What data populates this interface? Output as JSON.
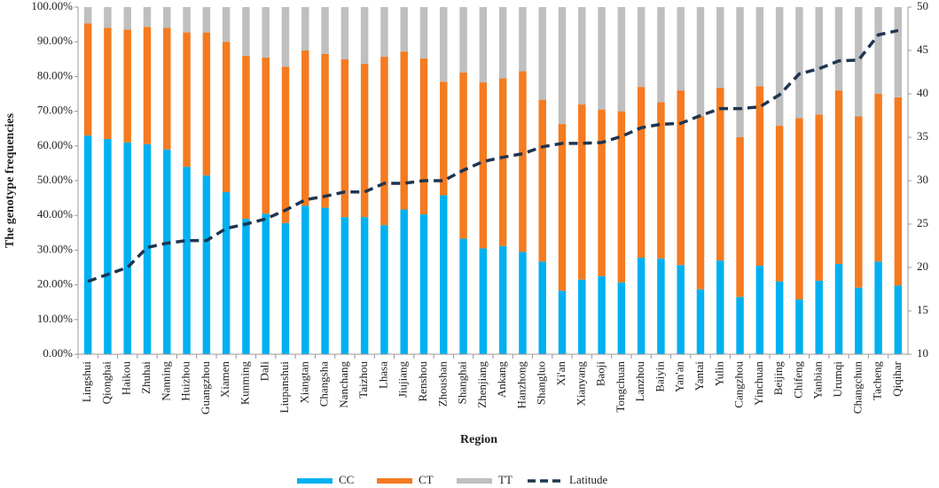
{
  "chart_data": {
    "type": "bar",
    "stacked": true,
    "x_label": "Region",
    "y_label": "The genotype frequencies",
    "categories": [
      "Lingshui",
      "Qionghai",
      "Haikou",
      "Zhuhai",
      "Nanning",
      "Huizhou",
      "Guangzhou",
      "Xiamen",
      "Kunming",
      "Dali",
      "Liupanshui",
      "Xiangtan",
      "Changsha",
      "Nanchang",
      "Taizhou",
      "Lhasa",
      "Jiujiang",
      "Renshou",
      "Zhoushan",
      "Shanghai",
      "Zhenjiang",
      "Ankang",
      "Hanzhong",
      "Shangluo",
      "Xi'an",
      "Xianyang",
      "Baoji",
      "Tongchuan",
      "Lanzhou",
      "Baiyin",
      "Yan'an",
      "Yantai",
      "Yulin",
      "Cangzhou",
      "Yinchuan",
      "Beijing",
      "Chifeng",
      "Yanbian",
      "Urumqi",
      "Changchun",
      "Tacheng",
      "Qiqihar"
    ],
    "series": [
      {
        "name": "CC",
        "color": "#00b0f0",
        "values": [
          63,
          62,
          61,
          60.5,
          59,
          54,
          51.5,
          46.7,
          39,
          40.5,
          37.8,
          42.8,
          42.2,
          39.5,
          39.5,
          37.2,
          41.7,
          40.3,
          45.8,
          33.3,
          30.5,
          31.2,
          29.5,
          26.7,
          18.3,
          21.5,
          22.5,
          20.7,
          27.8,
          27.6,
          25.7,
          18.7,
          27,
          16.5,
          25.5,
          21,
          15.8,
          21.2,
          26,
          19.2,
          26.7,
          19.8
        ]
      },
      {
        "name": "CT",
        "color": "#f47b20",
        "values": [
          32.3,
          32,
          32.5,
          33.8,
          35,
          38.7,
          41.2,
          43.3,
          47,
          45,
          45,
          44.7,
          44.3,
          45.5,
          44.2,
          48.5,
          45.5,
          44.9,
          32.7,
          47.9,
          47.8,
          48.3,
          52,
          46.6,
          48,
          50.5,
          48,
          49.3,
          49.2,
          45,
          50.3,
          49.8,
          49.8,
          46,
          51.7,
          44.8,
          52.2,
          47.8,
          50,
          49.3,
          48.3,
          54.2
        ]
      },
      {
        "name": "TT",
        "color": "#bfbfbf",
        "values": [
          4.7,
          6,
          6.5,
          5.7,
          6,
          7.3,
          7.3,
          10,
          14,
          14.5,
          17.2,
          12.5,
          13.5,
          15,
          16.3,
          14.3,
          12.8,
          14.8,
          21.5,
          18.8,
          21.7,
          20.5,
          18.5,
          26.7,
          33.7,
          28,
          29.5,
          30,
          23,
          27.4,
          24,
          31.5,
          23.2,
          37.5,
          22.8,
          34.2,
          32,
          31,
          24,
          31.5,
          25,
          26
        ]
      },
      {
        "name": "Latitude",
        "color": "#1f3550",
        "type": "line",
        "line_style": "dashed",
        "axis": "y2",
        "values": [
          18.4,
          19.2,
          20.0,
          22.3,
          22.8,
          23.1,
          23.1,
          24.5,
          25.0,
          25.6,
          26.6,
          27.8,
          28.2,
          28.7,
          28.7,
          29.7,
          29.7,
          30.0,
          30.0,
          31.2,
          32.2,
          32.7,
          33.1,
          33.9,
          34.3,
          34.3,
          34.4,
          35.1,
          36.1,
          36.5,
          36.6,
          37.5,
          38.3,
          38.3,
          38.5,
          39.9,
          42.3,
          42.9,
          43.8,
          43.9,
          46.8,
          47.3
        ]
      }
    ],
    "ylim": [
      0,
      100
    ],
    "yticks": [
      {
        "value": 0,
        "label": "0.00%"
      },
      {
        "value": 10,
        "label": "10.00%"
      },
      {
        "value": 20,
        "label": "20.00%"
      },
      {
        "value": 30,
        "label": "30.00%"
      },
      {
        "value": 40,
        "label": "40.00%"
      },
      {
        "value": 50,
        "label": "50.00%"
      },
      {
        "value": 60,
        "label": "60.00%"
      },
      {
        "value": 70,
        "label": "70.00%"
      },
      {
        "value": 80,
        "label": "80.00%"
      },
      {
        "value": 90,
        "label": "90.00%"
      },
      {
        "value": 100,
        "label": "100.00%"
      }
    ],
    "y2lim": [
      10,
      50
    ],
    "y2ticks": [
      10,
      15,
      20,
      25,
      30,
      35,
      40,
      45,
      50
    ],
    "grid": false,
    "legend": "bottom"
  }
}
